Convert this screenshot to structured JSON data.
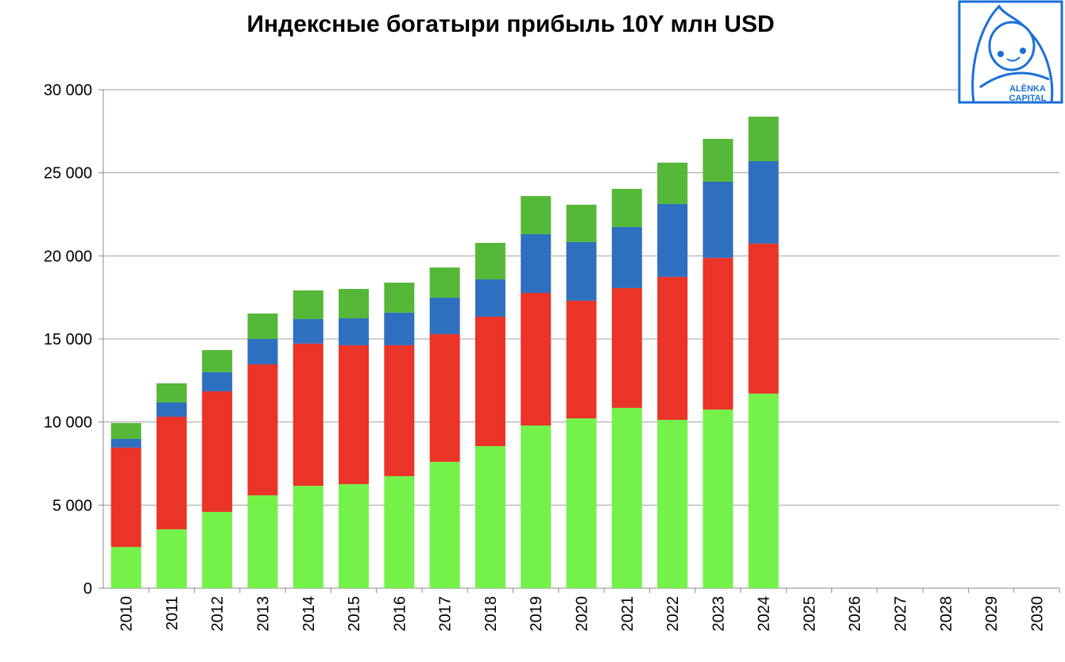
{
  "chart_data": {
    "type": "bar",
    "stacked": true,
    "title": "Индексные богатыри прибыль 10Y млн USD",
    "xlabel": "",
    "ylabel": "",
    "ylim": [
      0,
      30000
    ],
    "yticks": [
      "0",
      "5 000",
      "10 000",
      "15 000",
      "20 000",
      "25 000",
      "30 000"
    ],
    "ytick_values": [
      0,
      5000,
      10000,
      15000,
      20000,
      25000,
      30000
    ],
    "grid": true,
    "legend": "none",
    "categories": [
      "2010",
      "2011",
      "2012",
      "2013",
      "2014",
      "2015",
      "2016",
      "2017",
      "2018",
      "2019",
      "2020",
      "2021",
      "2022",
      "2023",
      "2024",
      "2025",
      "2026",
      "2027",
      "2028",
      "2029",
      "2030"
    ],
    "series": [
      {
        "color": "#74f24a",
        "values": [
          2480,
          3540,
          4590,
          5590,
          6160,
          6260,
          6740,
          7600,
          8550,
          9790,
          10220,
          10850,
          10130,
          10750,
          11710,
          null,
          null,
          null,
          null,
          null,
          null
        ]
      },
      {
        "color": "#e93427",
        "values": [
          5980,
          6780,
          7260,
          7880,
          8560,
          8360,
          7880,
          7690,
          7790,
          7980,
          7080,
          7210,
          8600,
          9130,
          9030,
          null,
          null,
          null,
          null,
          null,
          null
        ]
      },
      {
        "color": "#2f6fbf",
        "values": [
          520,
          860,
          1150,
          1530,
          1480,
          1620,
          1960,
          2200,
          2250,
          3540,
          3530,
          3680,
          4400,
          4580,
          4960,
          null,
          null,
          null,
          null,
          null,
          null
        ]
      },
      {
        "color": "#55b838",
        "values": [
          960,
          1150,
          1330,
          1530,
          1720,
          1770,
          1810,
          1810,
          2190,
          2290,
          2250,
          2290,
          2480,
          2580,
          2680,
          null,
          null,
          null,
          null,
          null,
          null
        ]
      }
    ]
  },
  "logo": {
    "text": "ALЁNKA CAPITAL",
    "color": "#1a6fd8"
  }
}
